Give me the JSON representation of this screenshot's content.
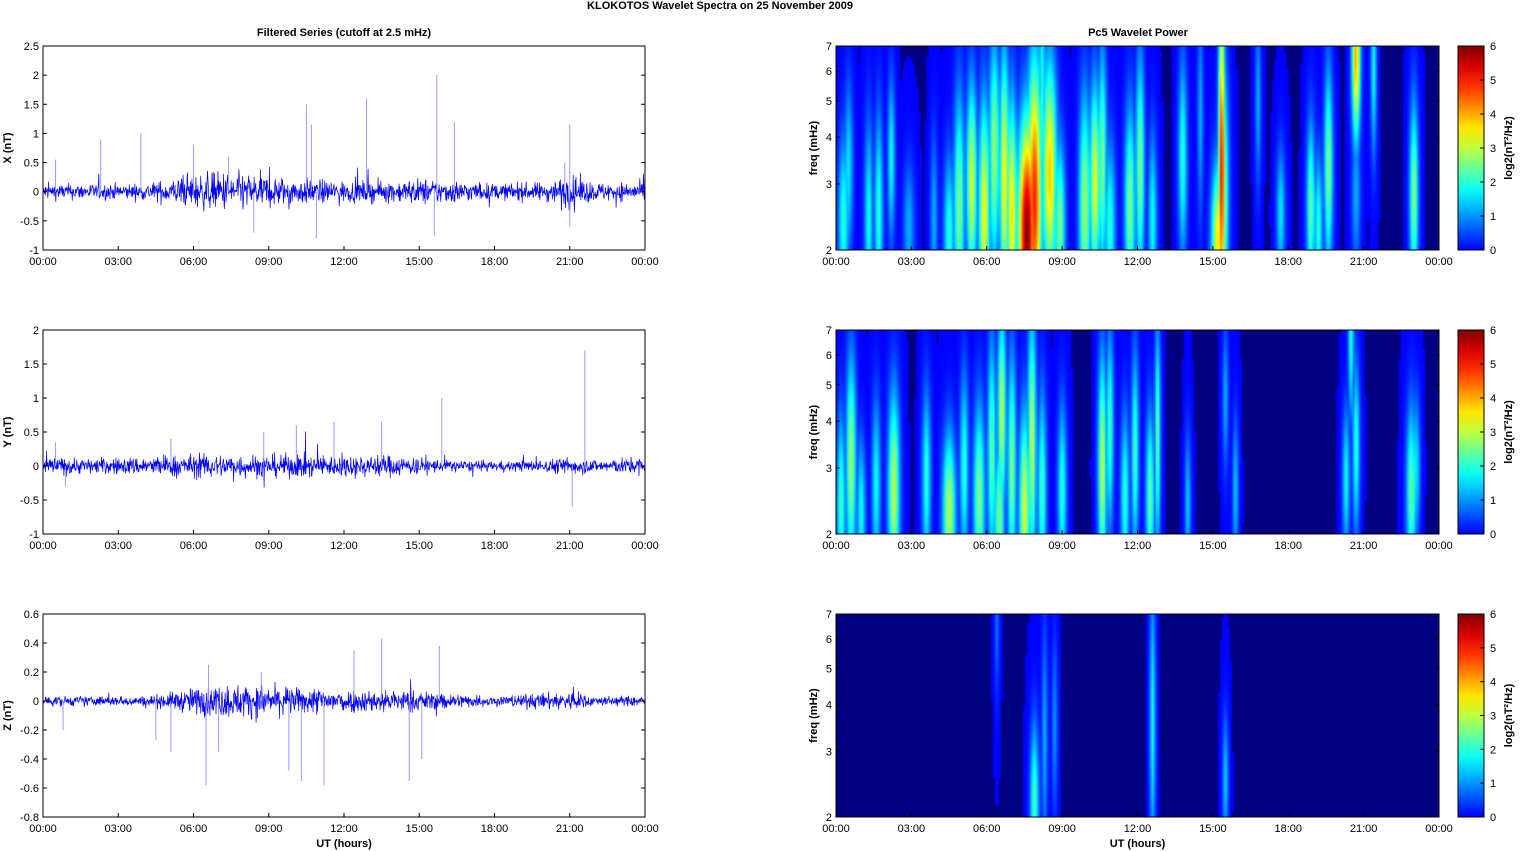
{
  "title": "KLOKOTOS Wavelet Spectra on 25 November  2009",
  "left_column_title": "Filtered Series (cutoff at 2.5 mHz)",
  "right_column_title": "Pc5 Wavelet Power",
  "x_axis_label": "UT (hours)",
  "colors": {
    "trace": "#0000ff",
    "spike": "#9999ff",
    "background": "#00008f"
  },
  "chart_data": [
    {
      "type": "line",
      "component": "X",
      "ylabel": "X (nT)",
      "xlabel": "",
      "x_ticks": [
        "00:00",
        "03:00",
        "06:00",
        "09:00",
        "12:00",
        "15:00",
        "18:00",
        "21:00",
        "00:00"
      ],
      "ylim": [
        -1,
        2.5
      ],
      "y_ticks": [
        "-1",
        "-0.5",
        "0",
        "0.5",
        "1",
        "1.5",
        "2",
        "2.5"
      ],
      "y_tick_values": [
        -1,
        -0.5,
        0,
        0.5,
        1,
        1.5,
        2,
        2.5
      ],
      "noise_envelope": {
        "hours": [
          0,
          2,
          4,
          5,
          6,
          7,
          8,
          9,
          10,
          11,
          12,
          13,
          14,
          15,
          16,
          18,
          20,
          21,
          22,
          23,
          24
        ],
        "amplitude": [
          0.12,
          0.12,
          0.12,
          0.18,
          0.25,
          0.3,
          0.28,
          0.25,
          0.2,
          0.18,
          0.16,
          0.16,
          0.16,
          0.2,
          0.18,
          0.12,
          0.14,
          0.25,
          0.14,
          0.14,
          0.14
        ]
      },
      "spikes": [
        [
          0.5,
          0.55
        ],
        [
          2.3,
          0.9
        ],
        [
          3.9,
          1.0
        ],
        [
          6.0,
          0.8
        ],
        [
          7.4,
          0.6
        ],
        [
          10.5,
          1.5
        ],
        [
          10.7,
          1.15
        ],
        [
          12.9,
          1.6
        ],
        [
          15.7,
          2.0
        ],
        [
          15.6,
          -0.75
        ],
        [
          16.4,
          1.2
        ],
        [
          20.8,
          0.5
        ],
        [
          21.0,
          1.15
        ],
        [
          21.0,
          -0.6
        ],
        [
          10.9,
          -0.8
        ],
        [
          8.4,
          -0.7
        ]
      ]
    },
    {
      "type": "line",
      "component": "Y",
      "ylabel": "Y (nT)",
      "xlabel": "",
      "x_ticks": [
        "00:00",
        "03:00",
        "06:00",
        "09:00",
        "12:00",
        "15:00",
        "18:00",
        "21:00",
        "00:00"
      ],
      "ylim": [
        -1,
        2
      ],
      "y_ticks": [
        "-1",
        "-0.5",
        "0",
        "0.5",
        "1",
        "1.5",
        "2"
      ],
      "y_tick_values": [
        -1,
        -0.5,
        0,
        0.5,
        1,
        1.5,
        2
      ],
      "noise_envelope": {
        "hours": [
          0,
          2,
          4,
          6,
          8,
          10,
          12,
          14,
          16,
          18,
          20,
          21,
          22,
          24
        ],
        "amplitude": [
          0.12,
          0.1,
          0.12,
          0.15,
          0.15,
          0.15,
          0.14,
          0.14,
          0.08,
          0.06,
          0.08,
          0.12,
          0.08,
          0.12
        ]
      },
      "spikes": [
        [
          0.5,
          0.35
        ],
        [
          5.1,
          0.4
        ],
        [
          8.8,
          0.5
        ],
        [
          10.1,
          0.6
        ],
        [
          11.6,
          0.65
        ],
        [
          13.5,
          0.65
        ],
        [
          15.9,
          1.0
        ],
        [
          21.6,
          1.7
        ],
        [
          21.1,
          -0.6
        ],
        [
          0.9,
          -0.3
        ]
      ]
    },
    {
      "type": "line",
      "component": "Z",
      "ylabel": "Z (nT)",
      "xlabel": "UT (hours)",
      "x_ticks": [
        "00:00",
        "03:00",
        "06:00",
        "09:00",
        "12:00",
        "15:00",
        "18:00",
        "21:00",
        "00:00"
      ],
      "ylim": [
        -0.8,
        0.6
      ],
      "y_ticks": [
        "-0.8",
        "-0.6",
        "-0.4",
        "-0.2",
        "0",
        "0.2",
        "0.4",
        "0.6"
      ],
      "y_tick_values": [
        -0.8,
        -0.6,
        -0.4,
        -0.2,
        0,
        0.2,
        0.4,
        0.6
      ],
      "noise_envelope": {
        "hours": [
          0,
          2,
          4,
          5,
          6,
          7,
          8,
          9,
          10,
          11,
          12,
          13,
          14,
          15,
          16,
          18,
          20,
          21,
          22,
          24
        ],
        "amplitude": [
          0.03,
          0.03,
          0.03,
          0.05,
          0.08,
          0.1,
          0.1,
          0.09,
          0.08,
          0.08,
          0.07,
          0.07,
          0.07,
          0.06,
          0.05,
          0.03,
          0.05,
          0.06,
          0.03,
          0.03
        ]
      },
      "spikes": [
        [
          0.8,
          -0.2
        ],
        [
          4.5,
          -0.27
        ],
        [
          5.1,
          -0.35
        ],
        [
          6.5,
          -0.58
        ],
        [
          7.0,
          -0.35
        ],
        [
          6.6,
          0.25
        ],
        [
          9.8,
          -0.48
        ],
        [
          11.2,
          -0.58
        ],
        [
          12.4,
          0.35
        ],
        [
          13.5,
          0.43
        ],
        [
          14.6,
          -0.55
        ],
        [
          15.8,
          0.38
        ],
        [
          15.1,
          -0.4
        ],
        [
          8.7,
          0.2
        ],
        [
          10.3,
          -0.55
        ]
      ]
    },
    {
      "type": "heatmap",
      "component": "X",
      "ylabel": "freq (mHz)",
      "xlabel": "",
      "colorbar_label": "log2(nT²/Hz)",
      "colorbar_ticks": [
        "0",
        "1",
        "2",
        "3",
        "4",
        "5",
        "6"
      ],
      "clim": [
        0,
        6
      ],
      "y_scale": "log",
      "ylim": [
        2,
        7
      ],
      "y_ticks": [
        "2",
        "3",
        "4",
        "5",
        "6",
        "7"
      ],
      "y_tick_values": [
        2,
        3,
        4,
        5,
        6,
        7
      ],
      "x_ticks": [
        "00:00",
        "03:00",
        "06:00",
        "09:00",
        "12:00",
        "15:00",
        "18:00",
        "21:00",
        "00:00"
      ],
      "blobs": [
        [
          0.3,
          2.4,
          2.4,
          0.15,
          2.0
        ],
        [
          0.5,
          3.3,
          2.4,
          0.12,
          1.6
        ],
        [
          1.3,
          2.4,
          3.0,
          0.12,
          1.8
        ],
        [
          1.7,
          2.5,
          3.0,
          0.12,
          2.0
        ],
        [
          2.2,
          3.5,
          2.3,
          0.1,
          1.8
        ],
        [
          2.9,
          2.3,
          1.8,
          0.15,
          1.2
        ],
        [
          3.9,
          2.4,
          2.5,
          0.1,
          1.2
        ],
        [
          4.5,
          2.2,
          2.2,
          0.15,
          2.0
        ],
        [
          4.9,
          2.6,
          3.5,
          0.15,
          2.6
        ],
        [
          5.4,
          3.0,
          3.0,
          0.15,
          3.2
        ],
        [
          5.9,
          2.5,
          3.5,
          0.16,
          3.4
        ],
        [
          6.3,
          3.6,
          3.5,
          0.15,
          2.8
        ],
        [
          6.7,
          3.1,
          4.0,
          0.14,
          3.5
        ],
        [
          7.0,
          2.5,
          3.5,
          0.15,
          3.6
        ],
        [
          7.6,
          2.2,
          3.5,
          0.25,
          6.0
        ],
        [
          7.9,
          2.7,
          4.5,
          0.2,
          5.0
        ],
        [
          8.5,
          3.2,
          3.5,
          0.2,
          3.8
        ],
        [
          8.9,
          2.3,
          2.5,
          0.15,
          2.6
        ],
        [
          8.2,
          5.0,
          4.0,
          0.1,
          2.0
        ],
        [
          9.9,
          2.6,
          3.5,
          0.16,
          2.8
        ],
        [
          10.3,
          3.0,
          3.0,
          0.15,
          3.3
        ],
        [
          10.6,
          3.4,
          3.5,
          0.12,
          2.6
        ],
        [
          10.9,
          2.3,
          2.5,
          0.15,
          2.0
        ],
        [
          11.7,
          2.6,
          3.0,
          0.15,
          2.6
        ],
        [
          12.1,
          3.3,
          3.5,
          0.12,
          2.6
        ],
        [
          12.6,
          2.4,
          2.5,
          0.12,
          1.8
        ],
        [
          13.8,
          3.5,
          3.0,
          0.12,
          2.0
        ],
        [
          14.5,
          4.5,
          3.0,
          0.08,
          1.2
        ],
        [
          15.2,
          2.1,
          2.2,
          0.18,
          3.6
        ],
        [
          15.35,
          3.2,
          6.0,
          0.09,
          5.2
        ],
        [
          15.4,
          2.8,
          4.0,
          0.15,
          3.0
        ],
        [
          16.8,
          5.0,
          2.5,
          0.08,
          1.2
        ],
        [
          17.7,
          2.5,
          1.8,
          0.12,
          1.6
        ],
        [
          18.9,
          2.6,
          2.5,
          0.12,
          2.4
        ],
        [
          19.2,
          2.3,
          2.0,
          0.12,
          2.0
        ],
        [
          19.6,
          3.3,
          3.0,
          0.12,
          2.6
        ],
        [
          20.7,
          6.6,
          2.5,
          0.12,
          4.0
        ],
        [
          20.7,
          2.8,
          2.0,
          0.12,
          1.2
        ],
        [
          21.4,
          6.0,
          2.5,
          0.08,
          1.8
        ],
        [
          23.0,
          2.8,
          2.8,
          0.12,
          2.6
        ]
      ]
    },
    {
      "type": "heatmap",
      "component": "Y",
      "ylabel": "freq (mHz)",
      "xlabel": "",
      "colorbar_label": "log2(nT²/Hz)",
      "colorbar_ticks": [
        "0",
        "1",
        "2",
        "3",
        "4",
        "5",
        "6"
      ],
      "clim": [
        0,
        6
      ],
      "y_scale": "log",
      "ylim": [
        2,
        7
      ],
      "y_ticks": [
        "2",
        "3",
        "4",
        "5",
        "6",
        "7"
      ],
      "y_tick_values": [
        2,
        3,
        4,
        5,
        6,
        7
      ],
      "x_ticks": [
        "00:00",
        "03:00",
        "06:00",
        "09:00",
        "12:00",
        "15:00",
        "18:00",
        "21:00",
        "00:00"
      ],
      "blobs": [
        [
          0.2,
          2.4,
          2.6,
          0.12,
          2.2
        ],
        [
          0.6,
          3.1,
          3.2,
          0.14,
          2.8
        ],
        [
          1.0,
          2.3,
          2.0,
          0.12,
          1.8
        ],
        [
          1.6,
          2.7,
          2.5,
          0.12,
          1.8
        ],
        [
          2.3,
          2.6,
          3.0,
          0.16,
          3.0
        ],
        [
          3.6,
          2.8,
          2.6,
          0.12,
          2.0
        ],
        [
          4.5,
          2.3,
          2.2,
          0.18,
          3.0
        ],
        [
          5.1,
          3.0,
          2.8,
          0.12,
          2.0
        ],
        [
          5.7,
          2.5,
          2.8,
          0.16,
          2.6
        ],
        [
          6.2,
          3.3,
          3.5,
          0.12,
          2.4
        ],
        [
          6.6,
          4.2,
          3.0,
          0.12,
          3.0
        ],
        [
          6.5,
          2.2,
          2.2,
          0.14,
          2.6
        ],
        [
          7.0,
          3.0,
          3.5,
          0.12,
          2.6
        ],
        [
          7.5,
          2.3,
          3.0,
          0.15,
          3.2
        ],
        [
          7.8,
          3.5,
          4.0,
          0.12,
          3.0
        ],
        [
          8.2,
          2.6,
          3.0,
          0.12,
          2.2
        ],
        [
          9.0,
          2.6,
          2.5,
          0.12,
          2.0
        ],
        [
          10.6,
          3.0,
          3.5,
          0.12,
          3.0
        ],
        [
          10.9,
          3.8,
          3.0,
          0.1,
          2.2
        ],
        [
          11.5,
          2.5,
          2.5,
          0.12,
          2.0
        ],
        [
          11.9,
          3.3,
          3.0,
          0.1,
          2.2
        ],
        [
          12.5,
          2.5,
          2.5,
          0.12,
          2.4
        ],
        [
          12.8,
          3.6,
          3.5,
          0.08,
          2.4
        ],
        [
          14.0,
          2.4,
          2.0,
          0.08,
          1.4
        ],
        [
          15.9,
          2.6,
          2.0,
          0.08,
          1.4
        ],
        [
          15.5,
          4.6,
          2.0,
          0.08,
          1.2
        ],
        [
          20.3,
          2.8,
          2.0,
          0.1,
          1.8
        ],
        [
          20.7,
          3.4,
          2.5,
          0.1,
          2.0
        ],
        [
          20.5,
          6.8,
          2.5,
          0.08,
          2.0
        ],
        [
          22.9,
          2.6,
          2.5,
          0.14,
          2.4
        ],
        [
          23.1,
          3.0,
          2.0,
          0.1,
          1.6
        ]
      ]
    },
    {
      "type": "heatmap",
      "component": "Z",
      "ylabel": "freq (mHz)",
      "xlabel": "UT (hours)",
      "colorbar_label": "log2(nT²/Hz)",
      "colorbar_ticks": [
        "0",
        "1",
        "2",
        "3",
        "4",
        "5",
        "6"
      ],
      "clim": [
        0,
        6
      ],
      "y_scale": "log",
      "ylim": [
        2,
        7
      ],
      "y_ticks": [
        "2",
        "3",
        "4",
        "5",
        "6",
        "7"
      ],
      "y_tick_values": [
        2,
        3,
        4,
        5,
        6,
        7
      ],
      "x_ticks": [
        "00:00",
        "03:00",
        "06:00",
        "09:00",
        "12:00",
        "15:00",
        "18:00",
        "21:00",
        "00:00"
      ],
      "blobs": [
        [
          7.9,
          2.2,
          2.2,
          0.12,
          2.2
        ],
        [
          8.3,
          3.2,
          3.5,
          0.08,
          1.2
        ],
        [
          8.7,
          3.5,
          2.5,
          0.08,
          1.0
        ],
        [
          12.6,
          3.6,
          4.5,
          0.08,
          1.8
        ],
        [
          15.5,
          2.5,
          1.8,
          0.08,
          1.4
        ],
        [
          6.4,
          6.5,
          2.0,
          0.06,
          0.8
        ]
      ]
    }
  ]
}
